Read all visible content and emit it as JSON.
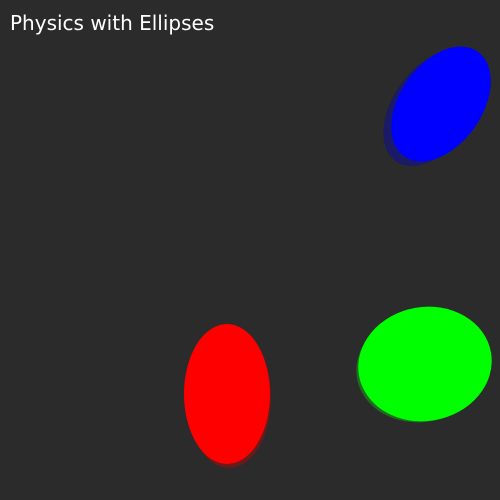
{
  "title": "Physics with Ellipses",
  "colors": {
    "background": "#2b2b2b",
    "title_text": "#ffffff"
  },
  "bodies": [
    {
      "name": "blue-ellipse",
      "color": "#0000ff",
      "shadow_color": "#1a1a66"
    },
    {
      "name": "green-ellipse",
      "color": "#00ff00",
      "shadow_color": "#1f6b1f"
    },
    {
      "name": "red-ellipse",
      "color": "#ff0000",
      "shadow_color": "#6b1a1a"
    }
  ]
}
